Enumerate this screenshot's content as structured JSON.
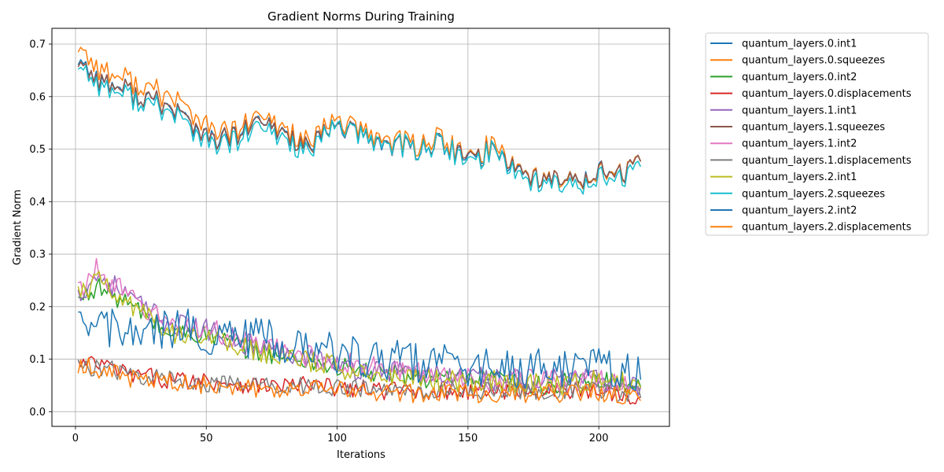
{
  "chart_data": {
    "type": "line",
    "title": "Gradient Norms During Training",
    "xlabel": "Iterations",
    "ylabel": "Gradient Norm",
    "xlim": [
      -9,
      227
    ],
    "ylim": [
      -0.028,
      0.73
    ],
    "xticks": [
      "0",
      "50",
      "100",
      "150",
      "200"
    ],
    "xtick_values": [
      0,
      50,
      100,
      150,
      200
    ],
    "yticks": [
      "0.0",
      "0.1",
      "0.2",
      "0.3",
      "0.4",
      "0.5",
      "0.6",
      "0.7"
    ],
    "ytick_values": [
      0.0,
      0.1,
      0.2,
      0.3,
      0.4,
      0.5,
      0.6,
      0.7
    ],
    "grid": true,
    "legend_position": "outside-right",
    "series_style": "noisy line; x from 1 to 216 step 1; values are trend control points interpolated with estimated noise amplitude",
    "x": [
      1,
      216
    ],
    "series": [
      {
        "name": "quantum_layers.0.int1",
        "color": "#1f77b4",
        "trend": [
          [
            1,
            0.67
          ],
          [
            10,
            0.63
          ],
          [
            20,
            0.61
          ],
          [
            30,
            0.59
          ],
          [
            40,
            0.57
          ],
          [
            50,
            0.52
          ],
          [
            60,
            0.52
          ],
          [
            70,
            0.55
          ],
          [
            80,
            0.53
          ],
          [
            90,
            0.5
          ],
          [
            100,
            0.55
          ],
          [
            110,
            0.52
          ],
          [
            120,
            0.51
          ],
          [
            130,
            0.5
          ],
          [
            140,
            0.51
          ],
          [
            150,
            0.48
          ],
          [
            160,
            0.5
          ],
          [
            170,
            0.46
          ],
          [
            180,
            0.44
          ],
          [
            190,
            0.44
          ],
          [
            200,
            0.46
          ],
          [
            210,
            0.45
          ],
          [
            216,
            0.47
          ]
        ],
        "noise": 0.022
      },
      {
        "name": "quantum_layers.0.squeezes",
        "color": "#ff7f0e",
        "trend": [
          [
            1,
            0.695
          ],
          [
            10,
            0.65
          ],
          [
            20,
            0.63
          ],
          [
            30,
            0.61
          ],
          [
            40,
            0.59
          ],
          [
            50,
            0.54
          ],
          [
            60,
            0.53
          ],
          [
            70,
            0.56
          ],
          [
            80,
            0.54
          ],
          [
            90,
            0.51
          ],
          [
            100,
            0.56
          ],
          [
            110,
            0.53
          ],
          [
            120,
            0.52
          ],
          [
            130,
            0.51
          ],
          [
            140,
            0.52
          ],
          [
            150,
            0.48
          ],
          [
            160,
            0.51
          ],
          [
            170,
            0.46
          ],
          [
            180,
            0.44
          ],
          [
            190,
            0.44
          ],
          [
            200,
            0.46
          ],
          [
            210,
            0.45
          ],
          [
            216,
            0.47
          ]
        ],
        "noise": 0.024
      },
      {
        "name": "quantum_layers.0.int2",
        "color": "#2ca02c",
        "trend": [
          [
            1,
            0.21
          ],
          [
            8,
            0.24
          ],
          [
            15,
            0.22
          ],
          [
            25,
            0.19
          ],
          [
            35,
            0.15
          ],
          [
            45,
            0.15
          ],
          [
            55,
            0.14
          ],
          [
            65,
            0.12
          ],
          [
            75,
            0.11
          ],
          [
            85,
            0.1
          ],
          [
            95,
            0.09
          ],
          [
            105,
            0.08
          ],
          [
            120,
            0.07
          ],
          [
            140,
            0.06
          ],
          [
            160,
            0.06
          ],
          [
            180,
            0.05
          ],
          [
            200,
            0.06
          ],
          [
            216,
            0.05
          ]
        ],
        "noise": 0.02
      },
      {
        "name": "quantum_layers.0.displacements",
        "color": "#d62728",
        "trend": [
          [
            1,
            0.09
          ],
          [
            10,
            0.09
          ],
          [
            20,
            0.07
          ],
          [
            30,
            0.065
          ],
          [
            40,
            0.06
          ],
          [
            50,
            0.06
          ],
          [
            60,
            0.055
          ],
          [
            70,
            0.05
          ],
          [
            80,
            0.05
          ],
          [
            90,
            0.05
          ],
          [
            100,
            0.045
          ],
          [
            120,
            0.04
          ],
          [
            140,
            0.04
          ],
          [
            160,
            0.04
          ],
          [
            180,
            0.04
          ],
          [
            200,
            0.04
          ],
          [
            216,
            0.03
          ]
        ],
        "noise": 0.018
      },
      {
        "name": "quantum_layers.1.int1",
        "color": "#9467bd",
        "trend": [
          [
            1,
            0.22
          ],
          [
            8,
            0.26
          ],
          [
            15,
            0.24
          ],
          [
            25,
            0.2
          ],
          [
            35,
            0.17
          ],
          [
            45,
            0.16
          ],
          [
            55,
            0.15
          ],
          [
            65,
            0.13
          ],
          [
            75,
            0.12
          ],
          [
            85,
            0.11
          ],
          [
            95,
            0.1
          ],
          [
            105,
            0.08
          ],
          [
            120,
            0.08
          ],
          [
            140,
            0.07
          ],
          [
            160,
            0.06
          ],
          [
            180,
            0.06
          ],
          [
            200,
            0.06
          ],
          [
            216,
            0.05
          ]
        ],
        "noise": 0.022
      },
      {
        "name": "quantum_layers.1.squeezes",
        "color": "#8c564b",
        "trend": [
          [
            1,
            0.665
          ],
          [
            10,
            0.63
          ],
          [
            20,
            0.61
          ],
          [
            30,
            0.59
          ],
          [
            40,
            0.57
          ],
          [
            50,
            0.52
          ],
          [
            60,
            0.52
          ],
          [
            70,
            0.55
          ],
          [
            80,
            0.53
          ],
          [
            90,
            0.5
          ],
          [
            100,
            0.55
          ],
          [
            110,
            0.52
          ],
          [
            120,
            0.51
          ],
          [
            130,
            0.5
          ],
          [
            140,
            0.51
          ],
          [
            150,
            0.48
          ],
          [
            160,
            0.5
          ],
          [
            170,
            0.46
          ],
          [
            180,
            0.44
          ],
          [
            190,
            0.44
          ],
          [
            200,
            0.46
          ],
          [
            210,
            0.45
          ],
          [
            216,
            0.47
          ]
        ],
        "noise": 0.022
      },
      {
        "name": "quantum_layers.1.int2",
        "color": "#e377c2",
        "trend": [
          [
            1,
            0.23
          ],
          [
            8,
            0.27
          ],
          [
            15,
            0.24
          ],
          [
            25,
            0.2
          ],
          [
            35,
            0.17
          ],
          [
            45,
            0.16
          ],
          [
            55,
            0.15
          ],
          [
            65,
            0.13
          ],
          [
            75,
            0.12
          ],
          [
            85,
            0.11
          ],
          [
            95,
            0.1
          ],
          [
            105,
            0.09
          ],
          [
            120,
            0.08
          ],
          [
            140,
            0.07
          ],
          [
            160,
            0.06
          ],
          [
            180,
            0.06
          ],
          [
            200,
            0.06
          ],
          [
            216,
            0.05
          ]
        ],
        "noise": 0.022
      },
      {
        "name": "quantum_layers.1.displacements",
        "color": "#7f7f7f",
        "trend": [
          [
            1,
            0.085
          ],
          [
            10,
            0.085
          ],
          [
            20,
            0.07
          ],
          [
            30,
            0.065
          ],
          [
            40,
            0.06
          ],
          [
            50,
            0.055
          ],
          [
            60,
            0.05
          ],
          [
            70,
            0.05
          ],
          [
            80,
            0.05
          ],
          [
            90,
            0.05
          ],
          [
            100,
            0.045
          ],
          [
            120,
            0.04
          ],
          [
            140,
            0.04
          ],
          [
            160,
            0.04
          ],
          [
            180,
            0.04
          ],
          [
            200,
            0.04
          ],
          [
            216,
            0.03
          ]
        ],
        "noise": 0.018
      },
      {
        "name": "quantum_layers.2.int1",
        "color": "#bcbd22",
        "trend": [
          [
            1,
            0.22
          ],
          [
            8,
            0.25
          ],
          [
            15,
            0.22
          ],
          [
            25,
            0.19
          ],
          [
            35,
            0.15
          ],
          [
            45,
            0.15
          ],
          [
            55,
            0.14
          ],
          [
            65,
            0.12
          ],
          [
            75,
            0.11
          ],
          [
            85,
            0.1
          ],
          [
            95,
            0.09
          ],
          [
            105,
            0.08
          ],
          [
            120,
            0.07
          ],
          [
            140,
            0.06
          ],
          [
            160,
            0.06
          ],
          [
            180,
            0.05
          ],
          [
            200,
            0.06
          ],
          [
            216,
            0.05
          ]
        ],
        "noise": 0.022
      },
      {
        "name": "quantum_layers.2.squeezes",
        "color": "#17becf",
        "trend": [
          [
            1,
            0.66
          ],
          [
            10,
            0.62
          ],
          [
            20,
            0.6
          ],
          [
            30,
            0.58
          ],
          [
            40,
            0.56
          ],
          [
            50,
            0.51
          ],
          [
            60,
            0.51
          ],
          [
            70,
            0.54
          ],
          [
            80,
            0.52
          ],
          [
            90,
            0.49
          ],
          [
            100,
            0.55
          ],
          [
            110,
            0.52
          ],
          [
            120,
            0.51
          ],
          [
            130,
            0.5
          ],
          [
            140,
            0.51
          ],
          [
            150,
            0.47
          ],
          [
            160,
            0.5
          ],
          [
            170,
            0.45
          ],
          [
            180,
            0.43
          ],
          [
            190,
            0.43
          ],
          [
            200,
            0.45
          ],
          [
            210,
            0.44
          ],
          [
            216,
            0.46
          ]
        ],
        "noise": 0.023
      },
      {
        "name": "quantum_layers.2.int2",
        "color": "#1f77b4",
        "trend": [
          [
            1,
            0.15
          ],
          [
            10,
            0.17
          ],
          [
            20,
            0.14
          ],
          [
            30,
            0.15
          ],
          [
            40,
            0.16
          ],
          [
            50,
            0.15
          ],
          [
            60,
            0.14
          ],
          [
            70,
            0.14
          ],
          [
            80,
            0.13
          ],
          [
            90,
            0.12
          ],
          [
            100,
            0.11
          ],
          [
            110,
            0.1
          ],
          [
            120,
            0.1
          ],
          [
            140,
            0.09
          ],
          [
            160,
            0.08
          ],
          [
            180,
            0.08
          ],
          [
            200,
            0.08
          ],
          [
            216,
            0.07
          ]
        ],
        "noise": 0.04
      },
      {
        "name": "quantum_layers.2.displacements",
        "color": "#ff7f0e",
        "trend": [
          [
            1,
            0.09
          ],
          [
            10,
            0.08
          ],
          [
            20,
            0.065
          ],
          [
            30,
            0.06
          ],
          [
            40,
            0.055
          ],
          [
            50,
            0.05
          ],
          [
            60,
            0.05
          ],
          [
            70,
            0.045
          ],
          [
            80,
            0.045
          ],
          [
            90,
            0.045
          ],
          [
            100,
            0.04
          ],
          [
            120,
            0.035
          ],
          [
            140,
            0.035
          ],
          [
            160,
            0.035
          ],
          [
            180,
            0.035
          ],
          [
            200,
            0.035
          ],
          [
            216,
            0.025
          ]
        ],
        "noise": 0.018
      }
    ]
  }
}
